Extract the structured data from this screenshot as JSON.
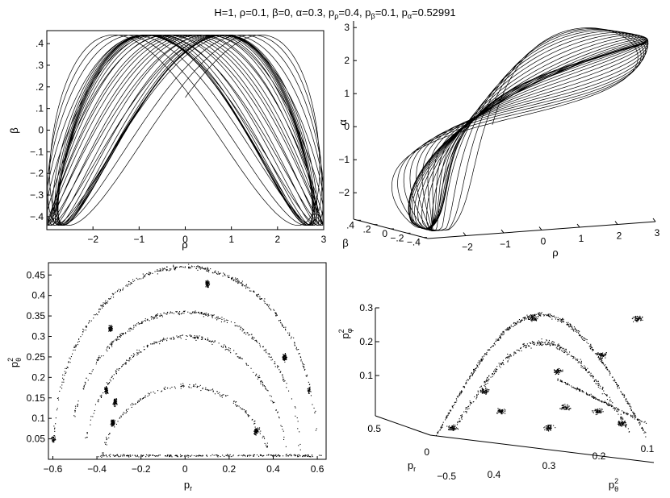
{
  "figure": {
    "title_parts": [
      "H=1, ρ=0.1, β=0, α=0.3, p",
      "ρ",
      "=0.4, p",
      "β",
      "=0.1, p",
      "α",
      "=0.52991"
    ]
  },
  "chart_data": [
    {
      "type": "line",
      "panel": "top-left",
      "xlabel": "ρ",
      "ylabel": "β",
      "xlim": [
        -3,
        3
      ],
      "ylim": [
        -0.46,
        0.46
      ],
      "xticks": [
        -2,
        -1,
        0,
        1,
        2,
        3
      ],
      "yticks": [
        -0.4,
        -0.3,
        -0.2,
        -0.1,
        0,
        0.1,
        0.2,
        0.3,
        0.4
      ],
      "curve": {
        "xamp": 2.9,
        "yamp": 0.44,
        "fx": 1.0,
        "fy": 2.02,
        "phase": 0.35
      }
    },
    {
      "type": "line3d",
      "panel": "top-right",
      "xlabel": "ρ",
      "ylabel": "β",
      "zlabel": "α",
      "xticks": [
        -2,
        -1,
        0,
        1,
        2,
        3
      ],
      "yticks": [
        0.4,
        0.2,
        0,
        -0.2,
        -0.4
      ],
      "zticks": [
        -2,
        -1,
        0,
        1,
        2,
        3
      ],
      "xlim": [
        -3,
        3
      ],
      "ylim": [
        -0.45,
        0.45
      ],
      "zlim": [
        -2.6,
        3.2
      ]
    },
    {
      "type": "scatter",
      "panel": "bottom-left",
      "xlabel": "p_r",
      "ylabel": "p_θ^2",
      "xlim": [
        -0.62,
        0.64
      ],
      "ylim": [
        0,
        0.48
      ],
      "xticks": [
        -0.6,
        -0.4,
        -0.2,
        0,
        0.2,
        0.4,
        0.6
      ],
      "yticks": [
        0.05,
        0.1,
        0.15,
        0.2,
        0.25,
        0.3,
        0.35,
        0.4,
        0.45
      ],
      "arcs": [
        {
          "xhalf": 0.6,
          "ymax": 0.47,
          "shape": 0.9,
          "n": 420
        },
        {
          "xhalf": 0.52,
          "ymax": 0.36,
          "shape": 0.9,
          "n": 320
        },
        {
          "xhalf": 0.46,
          "ymax": 0.3,
          "shape": 1.1,
          "n": 260
        },
        {
          "xhalf": 0.38,
          "ymax": 0.18,
          "shape": 1.2,
          "n": 180
        }
      ],
      "clusters": [
        {
          "x": -0.34,
          "y": 0.32,
          "n": 60
        },
        {
          "x": -0.36,
          "y": 0.17,
          "n": 80
        },
        {
          "x": -0.32,
          "y": 0.14,
          "n": 60
        },
        {
          "x": -0.33,
          "y": 0.09,
          "n": 90
        },
        {
          "x": 0.32,
          "y": 0.07,
          "n": 70
        },
        {
          "x": 0.45,
          "y": 0.25,
          "n": 90
        },
        {
          "x": 0.1,
          "y": 0.43,
          "n": 70
        },
        {
          "x": -0.6,
          "y": 0.05,
          "n": 40
        },
        {
          "x": 0.56,
          "y": 0.17,
          "n": 30
        }
      ],
      "floor": {
        "x_from": -0.4,
        "x_to": 0.62,
        "y": 0.01,
        "n": 260
      }
    },
    {
      "type": "scatter3d",
      "panel": "bottom-right",
      "xlabel": "p_r",
      "ylabel": "p_θ^2",
      "zlabel": "p_φ^2",
      "xticks": [
        0.5,
        0,
        -0.5
      ],
      "yticks": [
        0.4,
        0.3,
        0.2,
        0.1
      ],
      "zticks": [
        0.1,
        0.2,
        0.3
      ]
    }
  ]
}
